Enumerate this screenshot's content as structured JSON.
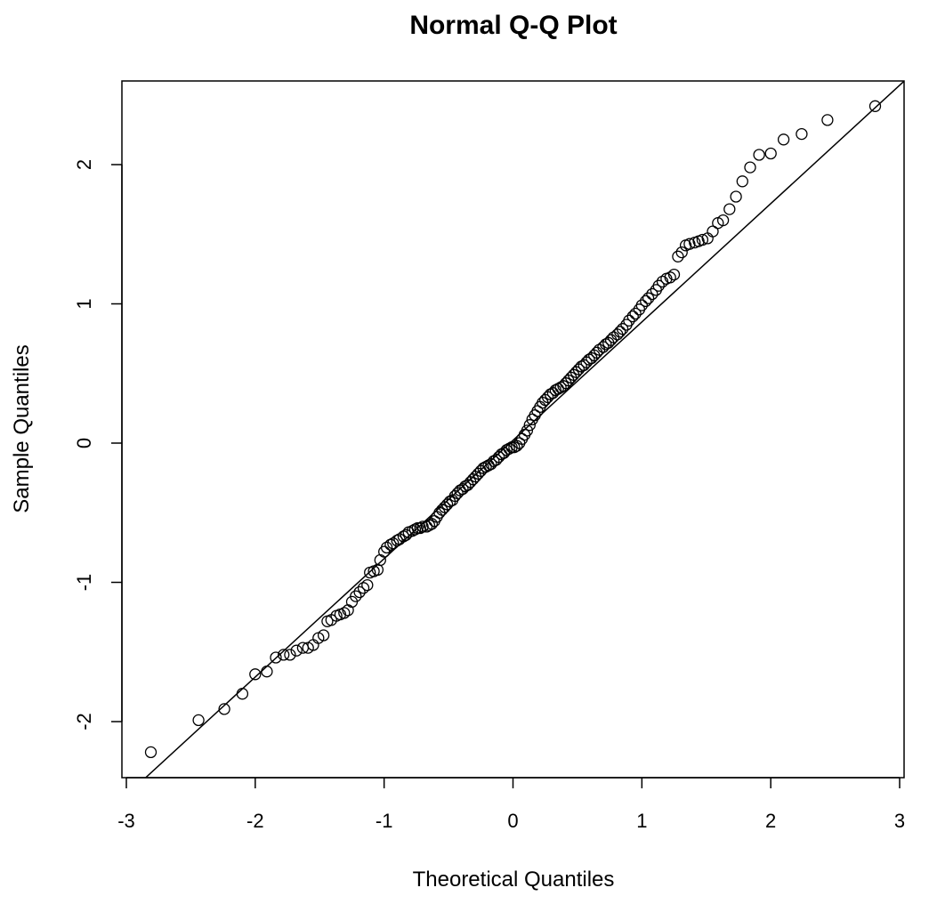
{
  "chart_data": {
    "type": "scatter",
    "title": "Normal Q-Q Plot",
    "xlabel": "Theoretical Quantiles",
    "ylabel": "Sample Quantiles",
    "xlim": [
      -3,
      3
    ],
    "ylim": [
      -2.4,
      2.6
    ],
    "x_ticks": [
      -3,
      -2,
      -1,
      0,
      1,
      2,
      3
    ],
    "x_tick_labels": [
      "-3",
      "-2",
      "-1",
      "0",
      "1",
      "2",
      "3"
    ],
    "y_ticks": [
      -2,
      -1,
      0,
      1,
      2
    ],
    "y_tick_labels": [
      "-2",
      "-1",
      "0",
      "1",
      "2"
    ],
    "grid": false,
    "point_color": "#000000",
    "line_color": "#000000",
    "reference_line": {
      "intercept": 0.02,
      "slope": 0.85
    },
    "points": [
      [
        -2.81,
        -2.22
      ],
      [
        -2.44,
        -1.99
      ],
      [
        -2.24,
        -1.91
      ],
      [
        -2.1,
        -1.8
      ],
      [
        -2.0,
        -1.66
      ],
      [
        -1.91,
        -1.64
      ],
      [
        -1.84,
        -1.54
      ],
      [
        -1.78,
        -1.52
      ],
      [
        -1.73,
        -1.52
      ],
      [
        -1.68,
        -1.49
      ],
      [
        -1.63,
        -1.47
      ],
      [
        -1.59,
        -1.47
      ],
      [
        -1.55,
        -1.45
      ],
      [
        -1.51,
        -1.4
      ],
      [
        -1.47,
        -1.38
      ],
      [
        -1.44,
        -1.28
      ],
      [
        -1.41,
        -1.27
      ],
      [
        -1.37,
        -1.24
      ],
      [
        -1.34,
        -1.23
      ],
      [
        -1.31,
        -1.22
      ],
      [
        -1.28,
        -1.2
      ],
      [
        -1.25,
        -1.14
      ],
      [
        -1.22,
        -1.1
      ],
      [
        -1.19,
        -1.07
      ],
      [
        -1.16,
        -1.04
      ],
      [
        -1.13,
        -1.02
      ],
      [
        -1.11,
        -0.93
      ],
      [
        -1.08,
        -0.92
      ],
      [
        -1.05,
        -0.91
      ],
      [
        -1.03,
        -0.84
      ],
      [
        -1.0,
        -0.78
      ],
      [
        -0.98,
        -0.75
      ],
      [
        -0.95,
        -0.73
      ],
      [
        -0.93,
        -0.72
      ],
      [
        -0.9,
        -0.7
      ],
      [
        -0.88,
        -0.69
      ],
      [
        -0.85,
        -0.67
      ],
      [
        -0.83,
        -0.66
      ],
      [
        -0.81,
        -0.64
      ],
      [
        -0.78,
        -0.63
      ],
      [
        -0.76,
        -0.62
      ],
      [
        -0.74,
        -0.61
      ],
      [
        -0.72,
        -0.61
      ],
      [
        -0.7,
        -0.6
      ],
      [
        -0.67,
        -0.6
      ],
      [
        -0.65,
        -0.59
      ],
      [
        -0.63,
        -0.58
      ],
      [
        -0.61,
        -0.56
      ],
      [
        -0.59,
        -0.53
      ],
      [
        -0.57,
        -0.5
      ],
      [
        -0.55,
        -0.48
      ],
      [
        -0.53,
        -0.46
      ],
      [
        -0.51,
        -0.44
      ],
      [
        -0.49,
        -0.42
      ],
      [
        -0.47,
        -0.41
      ],
      [
        -0.45,
        -0.38
      ],
      [
        -0.43,
        -0.36
      ],
      [
        -0.41,
        -0.34
      ],
      [
        -0.39,
        -0.33
      ],
      [
        -0.37,
        -0.31
      ],
      [
        -0.35,
        -0.3
      ],
      [
        -0.33,
        -0.28
      ],
      [
        -0.31,
        -0.26
      ],
      [
        -0.29,
        -0.24
      ],
      [
        -0.27,
        -0.22
      ],
      [
        -0.25,
        -0.2
      ],
      [
        -0.23,
        -0.18
      ],
      [
        -0.21,
        -0.17
      ],
      [
        -0.19,
        -0.16
      ],
      [
        -0.17,
        -0.15
      ],
      [
        -0.15,
        -0.13
      ],
      [
        -0.13,
        -0.12
      ],
      [
        -0.11,
        -0.1
      ],
      [
        -0.09,
        -0.08
      ],
      [
        -0.07,
        -0.07
      ],
      [
        -0.05,
        -0.05
      ],
      [
        -0.03,
        -0.04
      ],
      [
        -0.01,
        -0.03
      ],
      [
        0.01,
        -0.03
      ],
      [
        0.03,
        -0.02
      ],
      [
        0.05,
        0.0
      ],
      [
        0.07,
        0.03
      ],
      [
        0.09,
        0.06
      ],
      [
        0.11,
        0.09
      ],
      [
        0.13,
        0.13
      ],
      [
        0.15,
        0.17
      ],
      [
        0.17,
        0.2
      ],
      [
        0.19,
        0.23
      ],
      [
        0.21,
        0.26
      ],
      [
        0.23,
        0.29
      ],
      [
        0.25,
        0.31
      ],
      [
        0.27,
        0.33
      ],
      [
        0.29,
        0.35
      ],
      [
        0.31,
        0.36
      ],
      [
        0.33,
        0.38
      ],
      [
        0.35,
        0.39
      ],
      [
        0.37,
        0.4
      ],
      [
        0.39,
        0.41
      ],
      [
        0.41,
        0.43
      ],
      [
        0.43,
        0.45
      ],
      [
        0.45,
        0.47
      ],
      [
        0.47,
        0.49
      ],
      [
        0.49,
        0.51
      ],
      [
        0.51,
        0.53
      ],
      [
        0.53,
        0.55
      ],
      [
        0.55,
        0.56
      ],
      [
        0.57,
        0.58
      ],
      [
        0.59,
        0.6
      ],
      [
        0.61,
        0.61
      ],
      [
        0.63,
        0.63
      ],
      [
        0.65,
        0.65
      ],
      [
        0.67,
        0.67
      ],
      [
        0.7,
        0.69
      ],
      [
        0.72,
        0.71
      ],
      [
        0.74,
        0.72
      ],
      [
        0.76,
        0.74
      ],
      [
        0.78,
        0.76
      ],
      [
        0.81,
        0.78
      ],
      [
        0.83,
        0.8
      ],
      [
        0.85,
        0.82
      ],
      [
        0.88,
        0.85
      ],
      [
        0.9,
        0.88
      ],
      [
        0.93,
        0.91
      ],
      [
        0.95,
        0.93
      ],
      [
        0.98,
        0.96
      ],
      [
        1.0,
        0.99
      ],
      [
        1.03,
        1.02
      ],
      [
        1.05,
        1.04
      ],
      [
        1.08,
        1.07
      ],
      [
        1.11,
        1.1
      ],
      [
        1.13,
        1.13
      ],
      [
        1.16,
        1.16
      ],
      [
        1.19,
        1.18
      ],
      [
        1.22,
        1.19
      ],
      [
        1.25,
        1.21
      ],
      [
        1.28,
        1.34
      ],
      [
        1.31,
        1.37
      ],
      [
        1.34,
        1.42
      ],
      [
        1.37,
        1.43
      ],
      [
        1.41,
        1.44
      ],
      [
        1.44,
        1.45
      ],
      [
        1.47,
        1.46
      ],
      [
        1.51,
        1.47
      ],
      [
        1.55,
        1.52
      ],
      [
        1.59,
        1.58
      ],
      [
        1.63,
        1.6
      ],
      [
        1.68,
        1.68
      ],
      [
        1.73,
        1.77
      ],
      [
        1.78,
        1.88
      ],
      [
        1.84,
        1.98
      ],
      [
        1.91,
        2.07
      ],
      [
        2.0,
        2.08
      ],
      [
        2.1,
        2.18
      ],
      [
        2.24,
        2.22
      ],
      [
        2.44,
        2.32
      ],
      [
        2.81,
        2.42
      ]
    ]
  }
}
